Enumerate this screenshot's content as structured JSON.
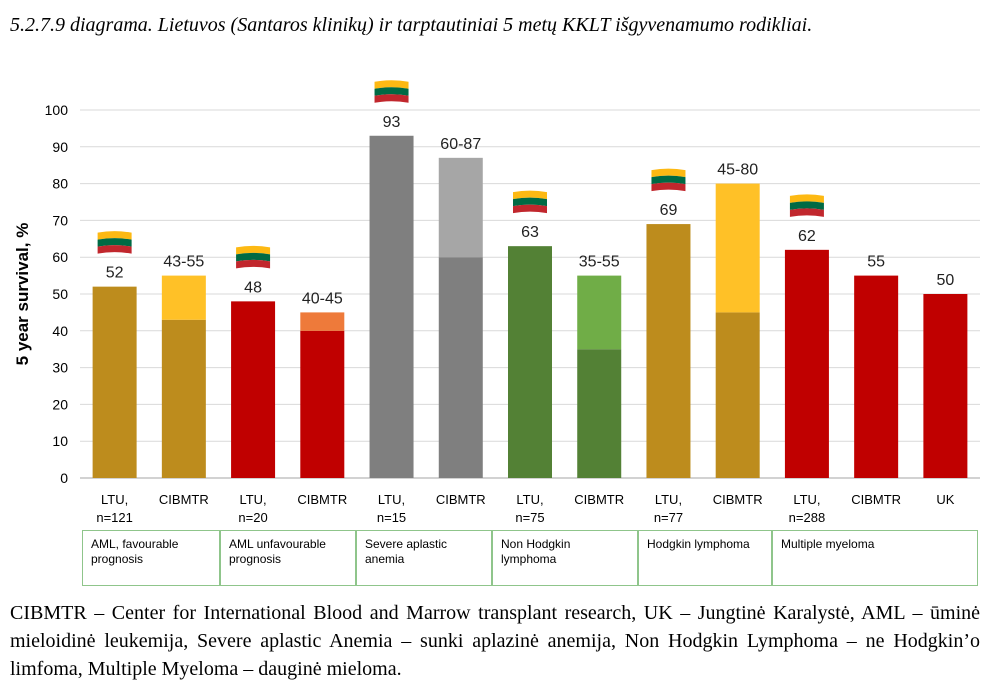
{
  "title": "5.2.7.9 diagrama. Lietuvos (Santaros klinikų) ir tarptautiniai 5 metų  KKLT išgyvenamumo rodikliai.",
  "chart_data": {
    "type": "bar",
    "ylabel": "5 year survival, %",
    "ylim": [
      0,
      100
    ],
    "yticks": [
      0,
      10,
      20,
      30,
      40,
      50,
      60,
      70,
      80,
      90,
      100
    ],
    "grid": true,
    "bars": [
      {
        "category": [
          "LTU,",
          "n=121"
        ],
        "value": 52,
        "label": "52",
        "color": "#bd8c1d",
        "flag": true
      },
      {
        "category": [
          "CIBMTR"
        ],
        "low": 43,
        "high": 55,
        "label": "43-55",
        "color": "#bd8c1d",
        "range_color": "#ffc127"
      },
      {
        "category": [
          "LTU,",
          "n=20"
        ],
        "value": 48,
        "label": "48",
        "color": "#c00000",
        "flag": true
      },
      {
        "category": [
          "CIBMTR"
        ],
        "low": 40,
        "high": 45,
        "label": "40-45",
        "color": "#c00000",
        "range_color": "#ee7a3a"
      },
      {
        "category": [
          "LTU,",
          "n=15"
        ],
        "value": 93,
        "label": "93",
        "color": "#7f7f7f",
        "flag": true
      },
      {
        "category": [
          "CIBMTR"
        ],
        "low": 60,
        "high": 87,
        "label": "60-87",
        "color": "#7f7f7f",
        "range_color": "#a6a6a6"
      },
      {
        "category": [
          "LTU,",
          "n=75"
        ],
        "value": 63,
        "label": "63",
        "color": "#538135",
        "flag": true
      },
      {
        "category": [
          "CIBMTR"
        ],
        "low": 35,
        "high": 55,
        "label": "35-55",
        "color": "#538135",
        "range_color": "#70ad47"
      },
      {
        "category": [
          "LTU,",
          "n=77"
        ],
        "value": 69,
        "label": "69",
        "color": "#bd8c1d",
        "flag": true
      },
      {
        "category": [
          "CIBMTR"
        ],
        "low": 45,
        "high": 80,
        "label": "45-80",
        "color": "#bd8c1d",
        "range_color": "#ffc127"
      },
      {
        "category": [
          "LTU,",
          "n=288"
        ],
        "value": 62,
        "label": "62",
        "color": "#c00000",
        "flag": true
      },
      {
        "category": [
          "CIBMTR"
        ],
        "value": 55,
        "label": "55",
        "color": "#c00000"
      },
      {
        "category": [
          "UK"
        ],
        "value": 50,
        "label": "50",
        "color": "#c00000"
      }
    ]
  },
  "groups": [
    {
      "label": "AML, favourable prognosis"
    },
    {
      "label": "AML unfavourable prognosis"
    },
    {
      "label": "Severe aplastic anemia"
    },
    {
      "label": "Non Hodgkin lymphoma"
    },
    {
      "label": "Hodgkin lymphoma"
    },
    {
      "label": "Multiple myeloma"
    }
  ],
  "flag_colors": [
    "#fdb913",
    "#006a44",
    "#c1272d"
  ],
  "footnote": "CIBMTR – Center for International Blood and Marrow transplant research, UK – Jungtinė Karalystė,  AML – ūminė mieloidinė leukemija, Severe aplastic Anemia – sunki aplazinė anemija, Non Hodgkin Lymphoma – ne Hodgkin’o limfoma, Multiple Myeloma – dauginė mieloma."
}
